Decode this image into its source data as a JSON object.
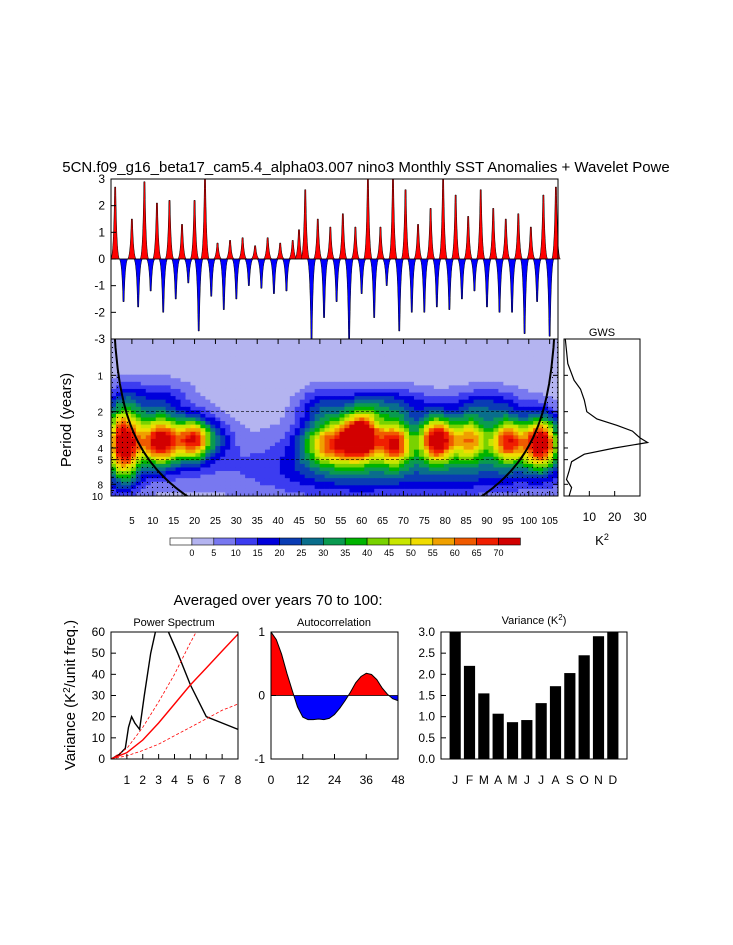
{
  "page_title": "5CN.f09_g16_beta17_cam5.4_alpha03.007 nino3 Monthly SST Anomalies + Wavelet Powe",
  "chart_data": [
    {
      "id": "anomaly",
      "type": "area",
      "ylim": [
        -3,
        3
      ],
      "yticks": [
        "3",
        "2",
        "1",
        "0",
        "-1",
        "-2",
        "-3"
      ],
      "colors": {
        "positive": "#ff0000",
        "negative": "#0000ff"
      },
      "events": [
        {
          "x": 1,
          "a": 2.7
        },
        {
          "x": 3,
          "a": -1.6
        },
        {
          "x": 5,
          "a": 1.5
        },
        {
          "x": 6.5,
          "a": -1.8
        },
        {
          "x": 8,
          "a": 2.9
        },
        {
          "x": 9.5,
          "a": -1.2
        },
        {
          "x": 11,
          "a": 2.1
        },
        {
          "x": 12.5,
          "a": -2.0
        },
        {
          "x": 14,
          "a": 2.2
        },
        {
          "x": 15.5,
          "a": -1.5
        },
        {
          "x": 17,
          "a": 1.3
        },
        {
          "x": 18.5,
          "a": -0.9
        },
        {
          "x": 20,
          "a": 2.2
        },
        {
          "x": 21,
          "a": -2.7
        },
        {
          "x": 22.5,
          "a": 3.0
        },
        {
          "x": 24,
          "a": -1.4
        },
        {
          "x": 25.5,
          "a": 0.6
        },
        {
          "x": 27,
          "a": -1.9
        },
        {
          "x": 28.5,
          "a": 0.7
        },
        {
          "x": 30,
          "a": -1.5
        },
        {
          "x": 31.5,
          "a": 0.8
        },
        {
          "x": 33,
          "a": -1.0
        },
        {
          "x": 34.5,
          "a": 0.5
        },
        {
          "x": 36,
          "a": -1.1
        },
        {
          "x": 37.5,
          "a": 0.8
        },
        {
          "x": 39,
          "a": -1.3
        },
        {
          "x": 40.5,
          "a": 0.6
        },
        {
          "x": 42,
          "a": -1.2
        },
        {
          "x": 43.5,
          "a": 0.7
        },
        {
          "x": 45,
          "a": 1.1
        },
        {
          "x": 46.5,
          "a": 2.6
        },
        {
          "x": 48,
          "a": -3.0
        },
        {
          "x": 49.5,
          "a": 1.5
        },
        {
          "x": 51,
          "a": -2.2
        },
        {
          "x": 52.5,
          "a": 1.2
        },
        {
          "x": 54,
          "a": -1.6
        },
        {
          "x": 55.5,
          "a": 1.7
        },
        {
          "x": 57,
          "a": -3.0
        },
        {
          "x": 58.5,
          "a": 1.2
        },
        {
          "x": 60,
          "a": -1.3
        },
        {
          "x": 61.5,
          "a": 3.0
        },
        {
          "x": 63,
          "a": -2.2
        },
        {
          "x": 64.5,
          "a": 1.2
        },
        {
          "x": 66,
          "a": -1.0
        },
        {
          "x": 67.5,
          "a": 3.0
        },
        {
          "x": 69,
          "a": -2.7
        },
        {
          "x": 70.5,
          "a": 2.6
        },
        {
          "x": 72,
          "a": -2.0
        },
        {
          "x": 73.5,
          "a": 1.3
        },
        {
          "x": 75,
          "a": -2.0
        },
        {
          "x": 76.5,
          "a": 1.9
        },
        {
          "x": 78,
          "a": -1.8
        },
        {
          "x": 79.5,
          "a": 3.0
        },
        {
          "x": 81,
          "a": -1.9
        },
        {
          "x": 82.5,
          "a": 2.4
        },
        {
          "x": 84,
          "a": -1.5
        },
        {
          "x": 85.5,
          "a": 1.6
        },
        {
          "x": 87,
          "a": -1.2
        },
        {
          "x": 88.5,
          "a": 2.6
        },
        {
          "x": 90,
          "a": -1.8
        },
        {
          "x": 91.5,
          "a": 1.9
        },
        {
          "x": 93,
          "a": -2.0
        },
        {
          "x": 94.5,
          "a": 1.5
        },
        {
          "x": 96,
          "a": -2.0
        },
        {
          "x": 97.5,
          "a": 1.7
        },
        {
          "x": 99,
          "a": -2.8
        },
        {
          "x": 100.5,
          "a": 1.2
        },
        {
          "x": 102,
          "a": -1.6
        },
        {
          "x": 103.5,
          "a": 2.4
        },
        {
          "x": 105,
          "a": -2.9
        },
        {
          "x": 106.5,
          "a": 2.7
        }
      ]
    },
    {
      "id": "wavelet",
      "type": "heatmap",
      "ylabel": "Period (years)",
      "xlim": [
        0,
        107
      ],
      "period_range": [
        0.5,
        10
      ],
      "xticks": [
        "5",
        "10",
        "15",
        "20",
        "25",
        "30",
        "35",
        "40",
        "45",
        "50",
        "55",
        "60",
        "65",
        "70",
        "75",
        "80",
        "85",
        "90",
        "95",
        "100",
        "105"
      ],
      "yticks": [
        {
          "v": 1,
          "label": "1"
        },
        {
          "v": 2,
          "label": "2"
        },
        {
          "v": 3,
          "label": "3"
        },
        {
          "v": 4,
          "label": "4"
        },
        {
          "v": 5,
          "label": "5"
        },
        {
          "v": 8,
          "label": "8"
        },
        {
          "v": 10,
          "label": "10"
        }
      ],
      "dashed_periods": [
        2,
        5
      ],
      "levels": [
        "0",
        "5",
        "10",
        "15",
        "20",
        "25",
        "30",
        "35",
        "40",
        "45",
        "50",
        "55",
        "60",
        "65",
        "70"
      ],
      "colors": [
        "#ffffff",
        "#b4b4f0",
        "#7878f0",
        "#3c3cf0",
        "#0000dc",
        "#0a3cb4",
        "#0a6e8c",
        "#0a9a50",
        "#00b400",
        "#78d200",
        "#c8e600",
        "#f0dc00",
        "#f0a000",
        "#f05a00",
        "#f01e00",
        "#d20000"
      ],
      "blobs": [
        {
          "t": 3,
          "p": 3.6,
          "w": 3,
          "h": 0.5,
          "a": 72
        },
        {
          "t": 12,
          "p": 3.5,
          "w": 3.5,
          "h": 0.33,
          "a": 70
        },
        {
          "t": 20,
          "p": 3.4,
          "w": 2.8,
          "h": 0.28,
          "a": 60
        },
        {
          "t": 26,
          "p": 3.3,
          "w": 2.5,
          "h": 0.28,
          "a": 12
        },
        {
          "t": 11,
          "p": 1.6,
          "w": 6,
          "h": 0.28,
          "a": 14
        },
        {
          "t": 53,
          "p": 3.6,
          "w": 5,
          "h": 0.3,
          "a": 55
        },
        {
          "t": 60,
          "p": 3.2,
          "w": 3,
          "h": 0.3,
          "a": 70
        },
        {
          "t": 68,
          "p": 3.6,
          "w": 3,
          "h": 0.3,
          "a": 60
        },
        {
          "t": 78,
          "p": 3.4,
          "w": 3,
          "h": 0.3,
          "a": 72
        },
        {
          "t": 86,
          "p": 3.4,
          "w": 3,
          "h": 0.3,
          "a": 50
        },
        {
          "t": 95,
          "p": 3.5,
          "w": 3,
          "h": 0.3,
          "a": 60
        },
        {
          "t": 103,
          "p": 3.6,
          "w": 3,
          "h": 0.35,
          "a": 72
        },
        {
          "t": 65,
          "p": 1.8,
          "w": 8,
          "h": 0.25,
          "a": 22
        },
        {
          "t": 50,
          "p": 1.8,
          "w": 4,
          "h": 0.25,
          "a": 14
        },
        {
          "t": 90,
          "p": 1.8,
          "w": 6,
          "h": 0.25,
          "a": 18
        },
        {
          "t": 60,
          "p": 6.5,
          "w": 16,
          "h": 0.35,
          "a": 16
        },
        {
          "t": 90,
          "p": 6.5,
          "w": 10,
          "h": 0.3,
          "a": 10
        }
      ],
      "blob_background": 6
    },
    {
      "id": "gws",
      "type": "line",
      "title": "GWS",
      "xlabel": "K²",
      "xlim": [
        0,
        30
      ],
      "xticks": [
        "10",
        "20",
        "30"
      ],
      "points": [
        [
          0.5,
          0.5
        ],
        [
          1.5,
          0.8
        ],
        [
          4,
          1.1
        ],
        [
          6.5,
          1.3
        ],
        [
          8,
          1.6
        ],
        [
          9,
          2.0
        ],
        [
          13,
          2.3
        ],
        [
          21,
          2.6
        ],
        [
          27,
          2.9
        ],
        [
          30,
          3.3
        ],
        [
          33,
          3.6
        ],
        [
          20,
          4.0
        ],
        [
          8,
          4.5
        ],
        [
          3,
          5.2
        ],
        [
          2,
          6.2
        ],
        [
          1,
          7.3
        ],
        [
          3,
          8.5
        ],
        [
          2,
          10
        ]
      ]
    },
    {
      "id": "power-spectrum",
      "type": "line",
      "title": "Power Spectrum",
      "ylabel": "Variance (K²/unit freq.)",
      "xlim": [
        0,
        8
      ],
      "ylim": [
        0,
        60
      ],
      "xticks": [
        "1",
        "2",
        "3",
        "4",
        "5",
        "6",
        "7",
        "8"
      ],
      "yticks": [
        "0",
        "10",
        "20",
        "30",
        "40",
        "50",
        "60"
      ],
      "series": [
        {
          "color": "#000000",
          "style": "solid",
          "values": [
            [
              0,
              0
            ],
            [
              0.5,
              2
            ],
            [
              0.9,
              5
            ],
            [
              1.1,
              15
            ],
            [
              1.3,
              20
            ],
            [
              1.5,
              17
            ],
            [
              1.8,
              14
            ],
            [
              2.1,
              30
            ],
            [
              2.5,
              50
            ],
            [
              2.8,
              60
            ],
            [
              3.5,
              62
            ],
            [
              4.2,
              50
            ],
            [
              5,
              35
            ],
            [
              6,
              20
            ],
            [
              7,
              17
            ],
            [
              8,
              14
            ]
          ]
        },
        {
          "color": "#ff0000",
          "style": "solid",
          "values": [
            [
              0,
              0
            ],
            [
              1,
              3
            ],
            [
              2,
              9
            ],
            [
              3,
              17
            ],
            [
              4,
              26
            ],
            [
              5,
              35
            ],
            [
              6,
              43
            ],
            [
              7,
              51
            ],
            [
              8,
              59
            ]
          ]
        },
        {
          "color": "#ff0000",
          "style": "dashed",
          "values": [
            [
              0,
              0
            ],
            [
              1,
              5
            ],
            [
              2,
              15
            ],
            [
              3,
              27
            ],
            [
              4,
              40
            ],
            [
              5,
              55
            ],
            [
              5.8,
              66
            ]
          ]
        },
        {
          "color": "#ff0000",
          "style": "dashed",
          "values": [
            [
              0,
              0
            ],
            [
              1,
              1.5
            ],
            [
              2,
              4
            ],
            [
              3,
              7
            ],
            [
              4,
              11
            ],
            [
              5,
              15
            ],
            [
              6,
              19
            ],
            [
              7,
              23
            ],
            [
              8,
              26
            ]
          ]
        }
      ]
    },
    {
      "id": "autocorrelation",
      "type": "area",
      "title": "Autocorrelation",
      "xlim": [
        0,
        48
      ],
      "ylim": [
        -1,
        1
      ],
      "xticks": [
        "0",
        "12",
        "24",
        "36",
        "48"
      ],
      "yticks": [
        "1",
        "0",
        "-1"
      ],
      "colors": {
        "positive": "#ff0000",
        "negative": "#0000ff"
      },
      "values": [
        [
          0,
          1
        ],
        [
          2,
          0.88
        ],
        [
          4,
          0.65
        ],
        [
          6,
          0.35
        ],
        [
          8,
          0.08
        ],
        [
          10,
          -0.18
        ],
        [
          12,
          -0.34
        ],
        [
          14,
          -0.38
        ],
        [
          16,
          -0.38
        ],
        [
          18,
          -0.37
        ],
        [
          20,
          -0.38
        ],
        [
          22,
          -0.36
        ],
        [
          24,
          -0.3
        ],
        [
          26,
          -0.2
        ],
        [
          28,
          -0.08
        ],
        [
          30,
          0.05
        ],
        [
          32,
          0.2
        ],
        [
          34,
          0.3
        ],
        [
          36,
          0.35
        ],
        [
          38,
          0.33
        ],
        [
          40,
          0.25
        ],
        [
          42,
          0.12
        ],
        [
          44,
          0.02
        ],
        [
          46,
          -0.05
        ],
        [
          48,
          -0.08
        ]
      ]
    },
    {
      "id": "variance",
      "type": "bar",
      "title": "Variance (K²)",
      "categories": [
        "J",
        "F",
        "M",
        "A",
        "M",
        "J",
        "J",
        "A",
        "S",
        "O",
        "N",
        "D"
      ],
      "values": [
        3.0,
        2.2,
        1.55,
        1.07,
        0.87,
        0.92,
        1.32,
        1.72,
        2.03,
        2.45,
        2.9,
        3.0
      ],
      "ylim": [
        0,
        3
      ],
      "yticks": [
        "0.0",
        "0.5",
        "1.0",
        "1.5",
        "2.0",
        "2.5",
        "3.0"
      ]
    }
  ],
  "subtitle": "Averaged over years 70 to 100:"
}
